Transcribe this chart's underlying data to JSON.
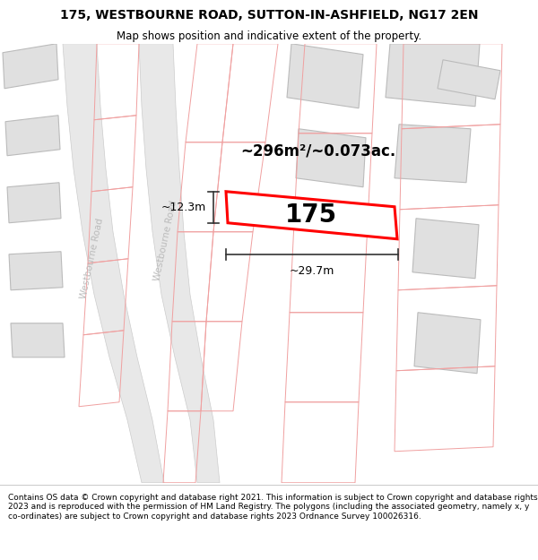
{
  "title_line1": "175, WESTBOURNE ROAD, SUTTON-IN-ASHFIELD, NG17 2EN",
  "title_line2": "Map shows position and indicative extent of the property.",
  "footer_text": "Contains OS data © Crown copyright and database right 2021. This information is subject to Crown copyright and database rights 2023 and is reproduced with the permission of HM Land Registry. The polygons (including the associated geometry, namely x, y co-ordinates) are subject to Crown copyright and database rights 2023 Ordnance Survey 100026316.",
  "area_label": "~296m²/~0.073ac.",
  "width_label": "~29.7m",
  "height_label": "~12.3m",
  "plot_number": "175",
  "map_bg": "#ffffff",
  "building_fill": "#e0e0e0",
  "building_edge": "#bbbbbb",
  "highlight_fill": "#ffffff",
  "highlight_edge": "#ff0000",
  "plot_line_color": "#f0a0a0",
  "road_fill": "#e8e8e8",
  "road_edge": "#cccccc",
  "street_label_color": "#bbbbbb",
  "dim_color": "#333333",
  "title_fontsize": 10,
  "subtitle_fontsize": 8.5,
  "footer_fontsize": 6.5
}
